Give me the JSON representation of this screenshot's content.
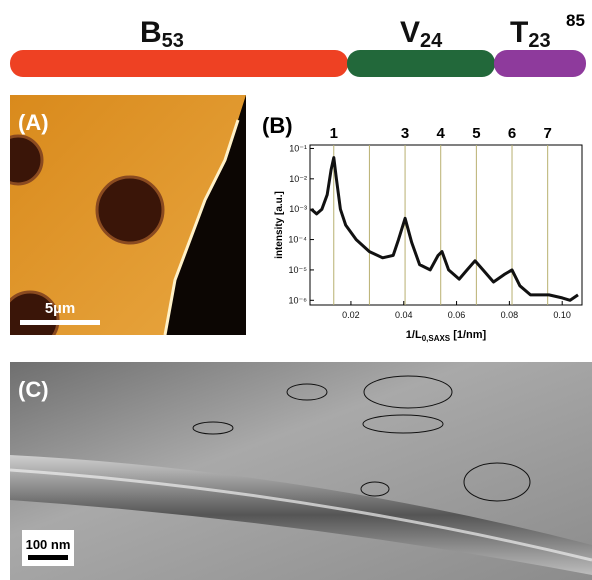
{
  "header": {
    "blocks": [
      {
        "name": "B",
        "subscript": 53,
        "color": "#ee4123"
      },
      {
        "name": "V",
        "subscript": 24,
        "color": "#22683a"
      },
      {
        "name": "T",
        "subscript": 23,
        "color": "#8e3a9c"
      }
    ],
    "superscript": 85
  },
  "panel_a": {
    "label": "(A)",
    "scale_bar": "5µm"
  },
  "chart_data": {
    "type": "line",
    "label": "(B)",
    "xlabel": {
      "main": "1/L",
      "subscript": "0,SAXS",
      "unit": "[1/nm]"
    },
    "ylabel": "intensity [a.u.]",
    "log_y": true,
    "x": [
      0.005,
      0.007,
      0.009,
      0.011,
      0.0125,
      0.0135,
      0.0145,
      0.016,
      0.018,
      0.022,
      0.027,
      0.032,
      0.036,
      0.038,
      0.0405,
      0.043,
      0.046,
      0.05,
      0.053,
      0.0545,
      0.057,
      0.061,
      0.064,
      0.067,
      0.07,
      0.074,
      0.078,
      0.081,
      0.084,
      0.088,
      0.095,
      0.1,
      0.103,
      0.106
    ],
    "series": [
      {
        "color": "#111111",
        "values": [
          0.001,
          0.0007,
          0.001,
          0.003,
          0.02,
          0.05,
          0.01,
          0.001,
          0.0003,
          0.0001,
          4e-05,
          2.5e-05,
          3e-05,
          0.0001,
          0.0005,
          8e-05,
          1.5e-05,
          1e-05,
          3e-05,
          4e-05,
          1e-05,
          5e-06,
          1e-05,
          2e-05,
          1e-05,
          4e-06,
          7e-06,
          1e-05,
          3e-06,
          1.5e-06,
          1.5e-06,
          1.2e-06,
          1e-06,
          1.5e-06
        ]
      }
    ],
    "peak_orders": [
      1,
      null,
      3,
      4,
      5,
      6,
      7
    ],
    "peak_x": [
      0.0135,
      0.027,
      0.0405,
      0.054,
      0.0675,
      0.081,
      0.0945
    ],
    "peak_color": "#b8b070",
    "xlim": [
      0.0045,
      0.1075
    ],
    "ylim": [
      7e-07,
      0.13
    ],
    "xticks": [
      0.02,
      0.04,
      0.06,
      0.08,
      {
        "value": 0.1,
        "label": "0.10"
      }
    ],
    "yticks": [
      {
        "value": 0.1,
        "label": "10⁻¹"
      },
      {
        "value": 0.01,
        "label": "10⁻²"
      },
      {
        "value": 0.001,
        "label": "10⁻³"
      },
      {
        "value": 0.0001,
        "label": "10⁻⁴"
      },
      {
        "value": 1e-05,
        "label": "10⁻⁵"
      },
      {
        "value": 1e-06,
        "label": "10⁻⁶"
      }
    ]
  },
  "panel_c": {
    "label": "(C)",
    "scale_bar": "100 nm"
  }
}
